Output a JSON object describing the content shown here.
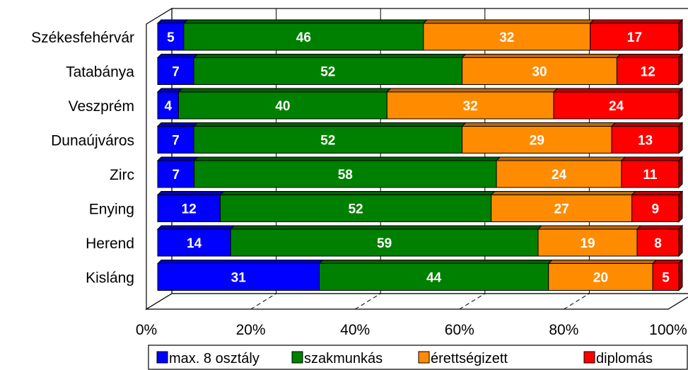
{
  "chart_data": {
    "type": "bar",
    "orientation": "horizontal",
    "stacked": "percent",
    "three_d": true,
    "categories": [
      "Székesfehérvár",
      "Tatabánya",
      "Veszprém",
      "Dunaújváros",
      "Zirc",
      "Enying",
      "Herend",
      "Kisláng"
    ],
    "series": [
      {
        "name": "max. 8 osztály",
        "color": "#0000ff",
        "values": [
          5,
          7,
          4,
          7,
          7,
          12,
          14,
          31
        ]
      },
      {
        "name": "szakmunkás",
        "color": "#008000",
        "values": [
          46,
          52,
          40,
          52,
          58,
          52,
          59,
          44
        ]
      },
      {
        "name": "érettségizett",
        "color": "#ff8c00",
        "values": [
          32,
          30,
          32,
          29,
          24,
          27,
          19,
          20
        ]
      },
      {
        "name": "diplomás",
        "color": "#ff0000",
        "values": [
          17,
          12,
          24,
          13,
          11,
          9,
          8,
          5
        ]
      }
    ],
    "x_ticks": [
      "0%",
      "20%",
      "40%",
      "60%",
      "80%",
      "100%"
    ],
    "xlim": [
      0,
      100
    ],
    "legend_position": "bottom",
    "grid": "vertical"
  }
}
